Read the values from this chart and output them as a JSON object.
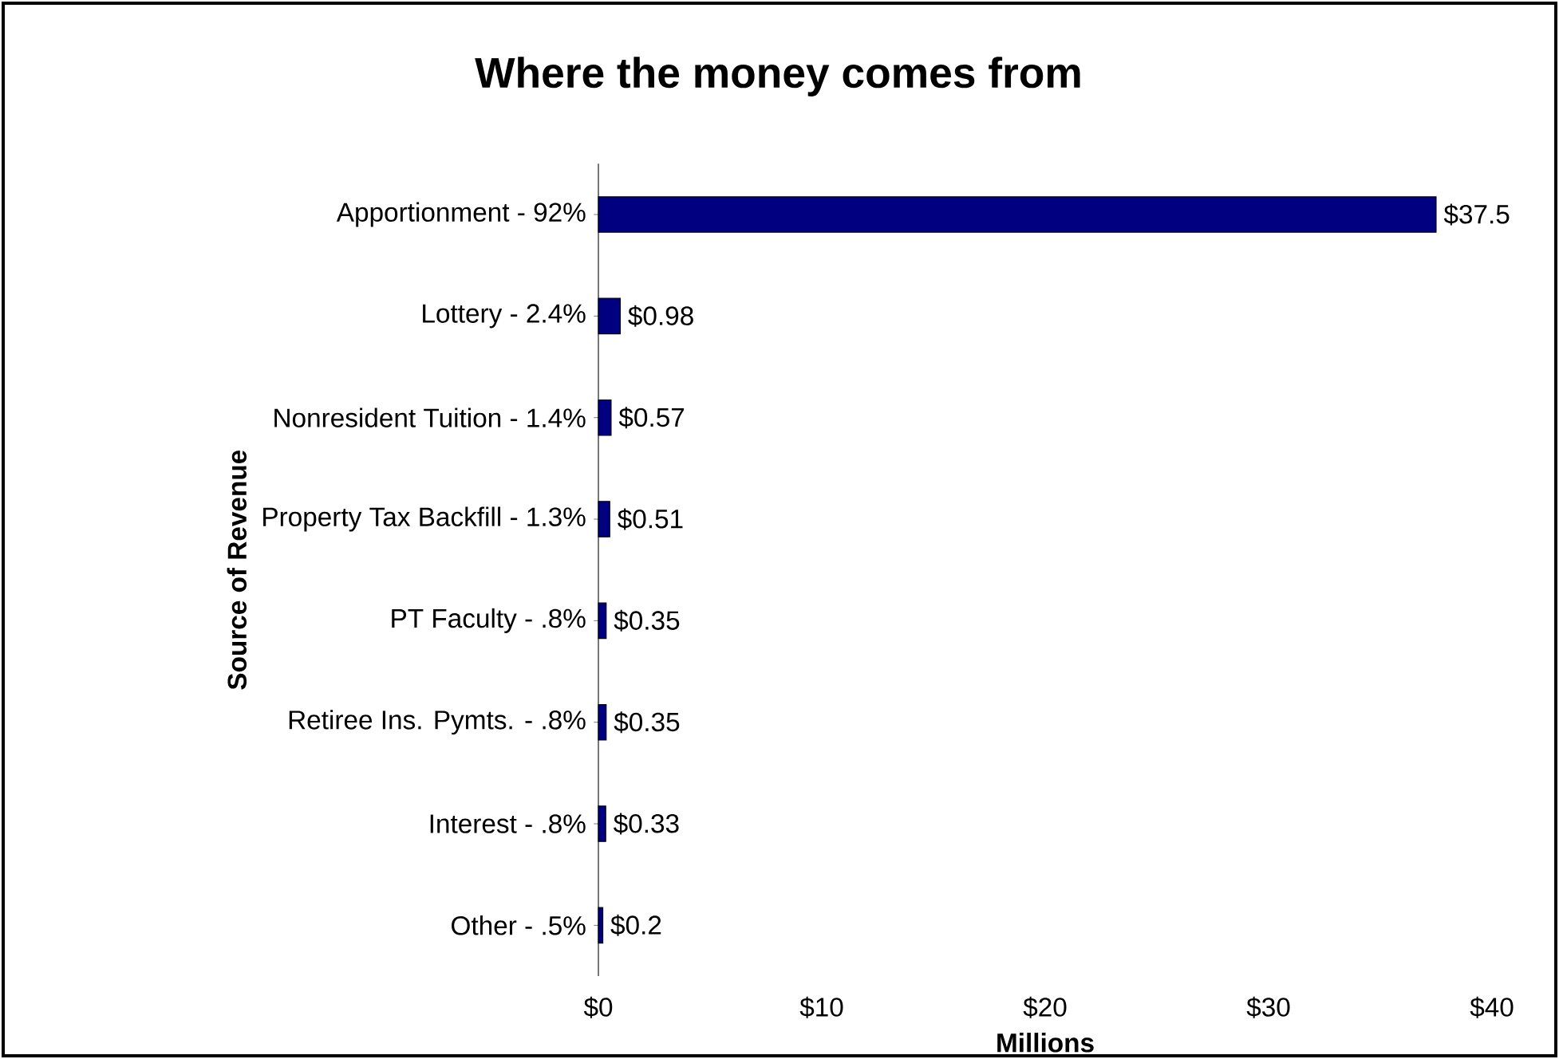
{
  "chart_data": {
    "type": "bar",
    "orientation": "horizontal",
    "title": "Where the money comes from",
    "xlabel": "Millions",
    "ylabel": "Source of Revenue",
    "categories": [
      "Apportionment - 92%",
      "Lottery - 2.4%",
      "Nonresident Tuition - 1.4%",
      "Property Tax Backfill - 1.3%",
      "PT Faculty - .8%",
      "Retiree Ins. Pymts. - .8%",
      "Interest - .8%",
      "Other - .5%"
    ],
    "values": [
      37.5,
      0.98,
      0.57,
      0.51,
      0.35,
      0.35,
      0.33,
      0.2
    ],
    "value_labels": [
      "$37.5",
      "$0.98",
      "$0.57",
      "$0.51",
      "$0.35",
      "$0.35",
      "$0.33",
      "$0.2"
    ],
    "color": "#000080",
    "xlim": [
      0,
      40
    ],
    "xticks": [
      {
        "value": 0,
        "label": "$0"
      },
      {
        "value": 10,
        "label": "$10"
      },
      {
        "value": 20,
        "label": "$20"
      },
      {
        "value": 30,
        "label": "$30"
      },
      {
        "value": 40,
        "label": "$40"
      }
    ]
  }
}
